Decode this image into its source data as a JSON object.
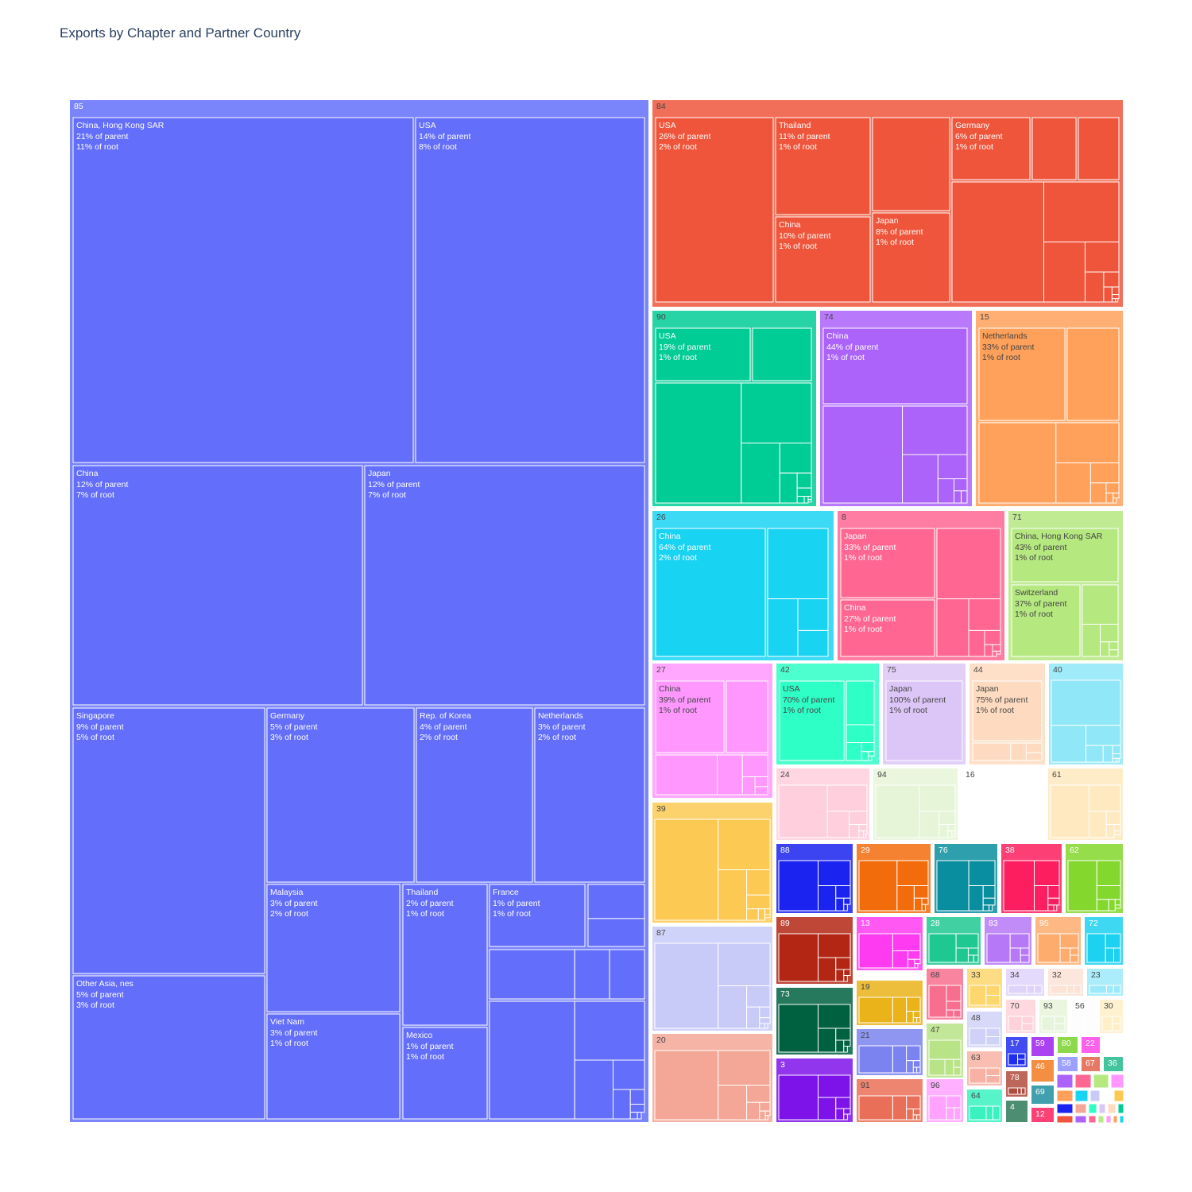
{
  "chart_data": {
    "type": "treemap",
    "title": "Exports by Chapter and Partner Country",
    "root": "total",
    "chapters": [
      {
        "id": "85",
        "color": "#636efa",
        "children": [
          {
            "label": "China, Hong Kong SAR",
            "pct_parent": "21% of parent",
            "pct_root": "11% of root"
          },
          {
            "label": "USA",
            "pct_parent": "14% of parent",
            "pct_root": "8% of root"
          },
          {
            "label": "China",
            "pct_parent": "12% of parent",
            "pct_root": "7% of root"
          },
          {
            "label": "Japan",
            "pct_parent": "12% of parent",
            "pct_root": "7% of root"
          },
          {
            "label": "Singapore",
            "pct_parent": "9% of parent",
            "pct_root": "5% of root"
          },
          {
            "label": "Other Asia, nes",
            "pct_parent": "5% of parent",
            "pct_root": "3% of root"
          },
          {
            "label": "Germany",
            "pct_parent": "5% of parent",
            "pct_root": "3% of root"
          },
          {
            "label": "Rep. of Korea",
            "pct_parent": "4% of parent",
            "pct_root": "2% of root"
          },
          {
            "label": "Netherlands",
            "pct_parent": "3% of parent",
            "pct_root": "2% of root"
          },
          {
            "label": "Malaysia",
            "pct_parent": "3% of parent",
            "pct_root": "2% of root"
          },
          {
            "label": "Viet Nam",
            "pct_parent": "3% of parent",
            "pct_root": "1% of root"
          },
          {
            "label": "Thailand",
            "pct_parent": "2% of parent",
            "pct_root": "1% of root"
          },
          {
            "label": "Mexico",
            "pct_parent": "1% of parent",
            "pct_root": "1% of root"
          },
          {
            "label": "France",
            "pct_parent": "1% of parent",
            "pct_root": "1% of root"
          }
        ]
      },
      {
        "id": "84",
        "color": "#ef553b",
        "children": [
          {
            "label": "USA",
            "pct_parent": "26% of parent",
            "pct_root": "2% of root"
          },
          {
            "label": "Thailand",
            "pct_parent": "11% of parent",
            "pct_root": "1% of root"
          },
          {
            "label": "China",
            "pct_parent": "10% of parent",
            "pct_root": "1% of root"
          },
          {
            "label": "Japan",
            "pct_parent": "8% of parent",
            "pct_root": "1% of root"
          },
          {
            "label": "Germany",
            "pct_parent": "6% of parent",
            "pct_root": "1% of root"
          }
        ]
      },
      {
        "id": "90",
        "color": "#00cc96",
        "children": [
          {
            "label": "USA",
            "pct_parent": "19% of parent",
            "pct_root": "1% of root"
          }
        ]
      },
      {
        "id": "74",
        "color": "#ab63fa",
        "children": [
          {
            "label": "China",
            "pct_parent": "44% of parent",
            "pct_root": "1% of root"
          }
        ]
      },
      {
        "id": "15",
        "color": "#ffa15a",
        "children": [
          {
            "label": "Netherlands",
            "pct_parent": "33% of parent",
            "pct_root": "1% of root"
          }
        ]
      },
      {
        "id": "26",
        "color": "#19d3f3",
        "children": [
          {
            "label": "China",
            "pct_parent": "64% of parent",
            "pct_root": "2% of root"
          }
        ]
      },
      {
        "id": "8",
        "color": "#ff6692",
        "children": [
          {
            "label": "Japan",
            "pct_parent": "33% of parent",
            "pct_root": "1% of root"
          },
          {
            "label": "China",
            "pct_parent": "27% of parent",
            "pct_root": "1% of root"
          }
        ]
      },
      {
        "id": "71",
        "color": "#b6e880",
        "children": [
          {
            "label": "China, Hong Kong SAR",
            "pct_parent": "43% of parent",
            "pct_root": "1% of root"
          },
          {
            "label": "Switzerland",
            "pct_parent": "37% of parent",
            "pct_root": "1% of root"
          }
        ]
      },
      {
        "id": "27",
        "color": "#ff97ff",
        "children": [
          {
            "label": "China",
            "pct_parent": "39% of parent",
            "pct_root": "1% of root"
          }
        ]
      },
      {
        "id": "42",
        "color": "#2effc6",
        "children": [
          {
            "label": "USA",
            "pct_parent": "70% of parent",
            "pct_root": "1% of root"
          }
        ]
      },
      {
        "id": "75",
        "color": "#dcc6f7",
        "children": [
          {
            "label": "Japan",
            "pct_parent": "100% of parent",
            "pct_root": "1% of root"
          }
        ]
      },
      {
        "id": "44",
        "color": "#fedbc0",
        "children": [
          {
            "label": "Japan",
            "pct_parent": "75% of parent",
            "pct_root": "1% of root"
          }
        ]
      },
      {
        "id": "40",
        "color": "#8fe7f8"
      },
      {
        "id": "24",
        "color": "#ffcfdd"
      },
      {
        "id": "94",
        "color": "#e6f4d8"
      },
      {
        "id": "16",
        "color": "#ffffff"
      },
      {
        "id": "61",
        "color": "#fee9c0"
      },
      {
        "id": "39",
        "color": "#fcca52"
      },
      {
        "id": "87",
        "color": "#c8cbf8"
      },
      {
        "id": "20",
        "color": "#f4a797"
      },
      {
        "id": "88",
        "color": "#1a23f0"
      },
      {
        "id": "29",
        "color": "#f26c0c"
      },
      {
        "id": "76",
        "color": "#098e9f"
      },
      {
        "id": "38",
        "color": "#fc1e5e"
      },
      {
        "id": "62",
        "color": "#84d72c"
      },
      {
        "id": "89",
        "color": "#b32614"
      },
      {
        "id": "13",
        "color": "#ff3bf1"
      },
      {
        "id": "28",
        "color": "#1fc891"
      },
      {
        "id": "83",
        "color": "#b678f6"
      },
      {
        "id": "95",
        "color": "#feab6e"
      },
      {
        "id": "72",
        "color": "#1dd1f1"
      },
      {
        "id": "73",
        "color": "#006140"
      },
      {
        "id": "19",
        "color": "#e9b319"
      },
      {
        "id": "68",
        "color": "#f76e8f"
      },
      {
        "id": "33",
        "color": "#fdd66e"
      },
      {
        "id": "34",
        "color": "#ded3fb"
      },
      {
        "id": "32",
        "color": "#fde2d5"
      },
      {
        "id": "23",
        "color": "#9ceaf9"
      },
      {
        "id": "21",
        "color": "#7b83f0"
      },
      {
        "id": "47",
        "color": "#b8e387"
      },
      {
        "id": "48",
        "color": "#cfd2f7"
      },
      {
        "id": "70",
        "color": "#ffd1db"
      },
      {
        "id": "93",
        "color": "#e7f4dc"
      },
      {
        "id": "56",
        "color": "#fdfdfd"
      },
      {
        "id": "30",
        "color": "#feefc8"
      },
      {
        "id": "3",
        "color": "#7d12e9"
      },
      {
        "id": "91",
        "color": "#ea6f58"
      },
      {
        "id": "96",
        "color": "#ffa3ff"
      },
      {
        "id": "63",
        "color": "#f8b2a3"
      },
      {
        "id": "64",
        "color": "#39f2c0"
      },
      {
        "id": "17",
        "color": "#1f2ded"
      },
      {
        "id": "59",
        "color": "#9b21f0"
      },
      {
        "id": "80",
        "color": "#7ad12b"
      },
      {
        "id": "22",
        "color": "#fd44e7"
      },
      {
        "id": "46",
        "color": "#f27b20"
      },
      {
        "id": "58",
        "color": "#8a91fa"
      },
      {
        "id": "67",
        "color": "#e2614b"
      },
      {
        "id": "36",
        "color": "#23b98a"
      },
      {
        "id": "78",
        "color": "#b14b3d"
      },
      {
        "id": "69",
        "color": "#1e8fa0"
      },
      {
        "id": "4",
        "color": "#2e7a5a"
      },
      {
        "id": "12",
        "color": "#fc1f5f"
      }
    ],
    "colors": {
      "title": "#2a3f5f",
      "border": "#ffffff"
    }
  }
}
